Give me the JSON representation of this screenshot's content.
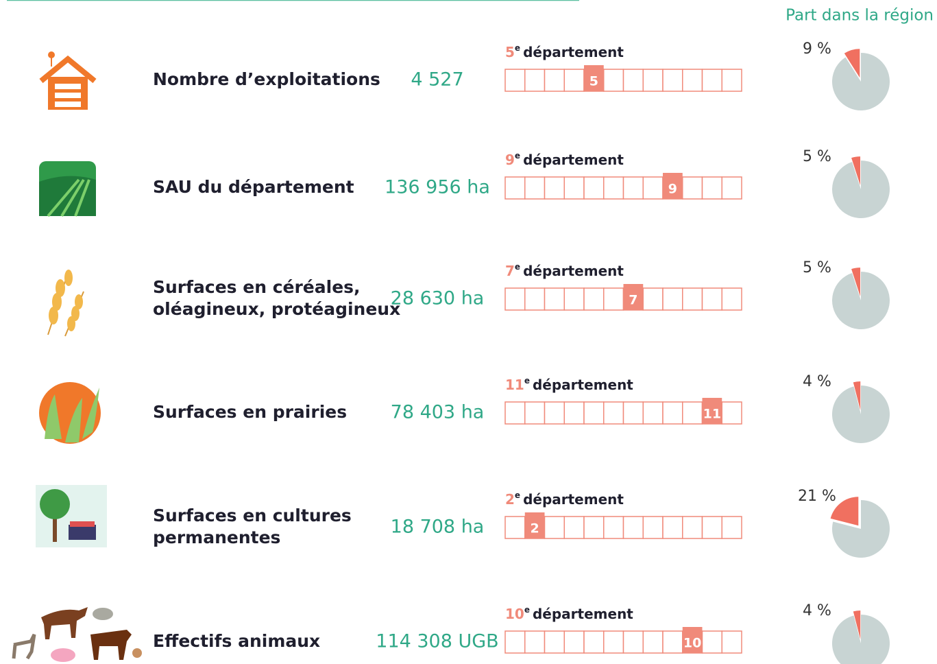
{
  "header": {
    "share_title": "Part dans la région"
  },
  "rank_suffix": "e",
  "rank_word": "département",
  "rank_count": 12,
  "rows": [
    {
      "label": [
        "Nombre d’exploitations"
      ],
      "value": "4 527",
      "rank": 5,
      "share": {
        "value": 9,
        "label": "9 %"
      }
    },
    {
      "label": [
        "SAU du département"
      ],
      "value": "136 956 ha",
      "rank": 9,
      "share": {
        "value": 5,
        "label": "5 %"
      }
    },
    {
      "label": [
        "Surfaces en céréales,",
        "oléagineux, protéagineux"
      ],
      "value": "28 630 ha",
      "rank": 7,
      "share": {
        "value": 5,
        "label": "5 %"
      }
    },
    {
      "label": [
        "Surfaces en prairies"
      ],
      "value": "78 403 ha",
      "rank": 11,
      "share": {
        "value": 4,
        "label": "4 %"
      }
    },
    {
      "label": [
        "Surfaces en cultures",
        "permanentes"
      ],
      "value": "18 708 ha",
      "rank": 2,
      "share": {
        "value": 21,
        "label": "21 %"
      }
    },
    {
      "label": [
        "Effectifs animaux"
      ],
      "value": "114 308 UGB",
      "rank": 10,
      "share": {
        "value": 4,
        "label": "4 %"
      }
    }
  ]
}
